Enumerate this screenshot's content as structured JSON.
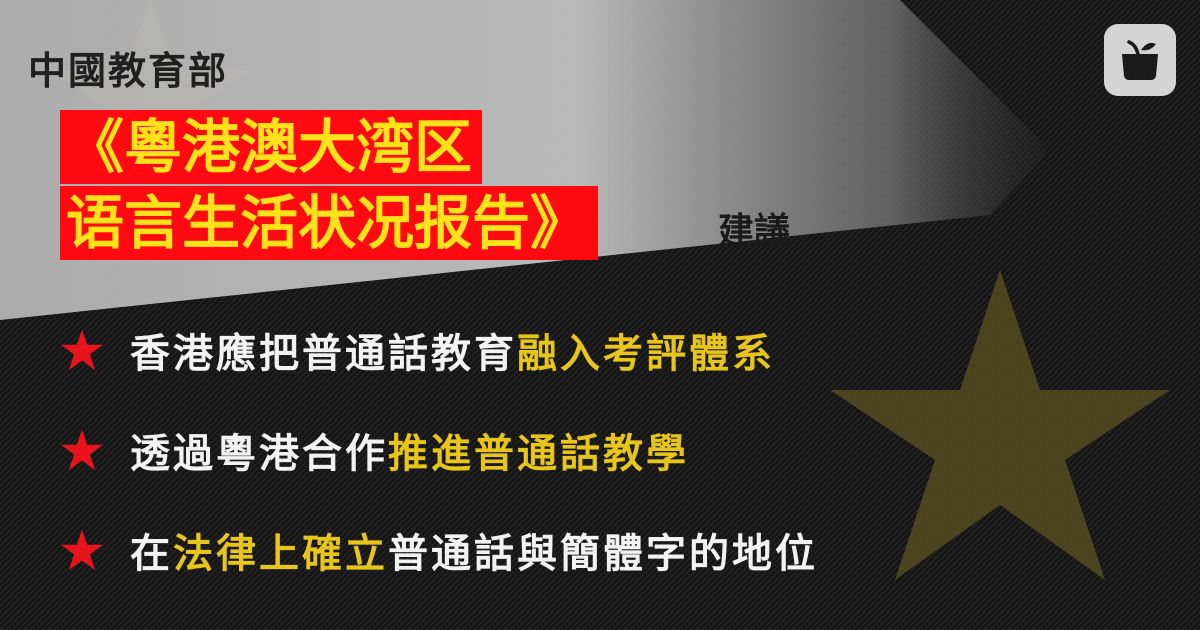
{
  "subtitle": "中國教育部",
  "headline": {
    "line1": "《粵港澳大湾区",
    "line2": "语言生活状况报告》",
    "suffix": "建議"
  },
  "items": [
    {
      "parts": [
        {
          "text": "香港應把普通話教育",
          "style": "w"
        },
        {
          "text": "融入考評體系",
          "style": "y"
        }
      ]
    },
    {
      "parts": [
        {
          "text": "透過粵港合作",
          "style": "w"
        },
        {
          "text": "推進普通話教學",
          "style": "y"
        }
      ]
    },
    {
      "parts": [
        {
          "text": "在",
          "style": "w"
        },
        {
          "text": "法律上確立",
          "style": "y"
        },
        {
          "text": "普通話與簡體字的地位",
          "style": "w"
        }
      ]
    }
  ],
  "colors": {
    "background": "#121212",
    "highlight_band": "#bdbdbd",
    "headline_bg": "#ff0a12",
    "headline_text": "#ffe21a",
    "accent_yellow": "#e8c51a",
    "bullet_star": "#e8141c"
  },
  "icons": {
    "bullet": "red-star-icon",
    "logo": "apple-logo-icon"
  }
}
